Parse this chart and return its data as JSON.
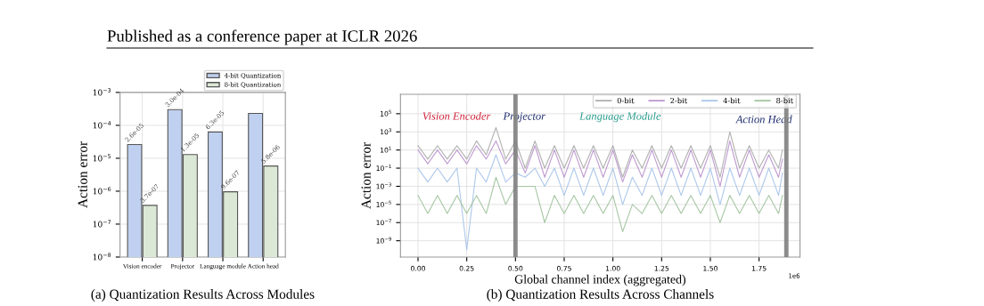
{
  "chart_data": [
    {
      "type": "bar",
      "ylabel": "Action error",
      "categories": [
        "Vision encoder",
        "Projector",
        "Language module",
        "Action head"
      ],
      "log": true,
      "ylim": [
        1e-08,
        0.001
      ],
      "yticks": [
        {
          "value": 1e-08,
          "label": "10$^{−8}$"
        },
        {
          "value": 1e-07,
          "label": "10$^{−7}$"
        },
        {
          "value": 1e-06,
          "label": "10$^{−6}$"
        },
        {
          "value": 1e-05,
          "label": "10$^{−5}$"
        },
        {
          "value": 0.0001,
          "label": "10$^{−4}$"
        },
        {
          "value": 0.001,
          "label": "10$^{−3}$"
        }
      ],
      "grid": true,
      "legend": "top right",
      "series": [
        {
          "name": "4-bit Quantization",
          "color": "#c0d0f0",
          "values": [
            2.6e-05,
            0.0003,
            6.3e-05,
            0.00023
          ],
          "value_labels": [
            "2.6e-05",
            "3.0e-04",
            "6.3e-05",
            null
          ]
        },
        {
          "name": "8-bit Quantization",
          "color": "#dce8d6",
          "values": [
            3.7e-07,
            1.3e-05,
            9.6e-07,
            5.8e-06
          ],
          "value_labels": [
            "3.7e-07",
            "1.3e-05",
            "9.6e-07",
            "5.8e-06"
          ]
        }
      ],
      "annotations": [
        "Published as a conference paper at ICLR 2026",
        "(a) Quantization Results Across Modules"
      ]
    },
    {
      "type": "line",
      "xlabel": "Global channel index (aggregated)",
      "ylabel": "Action error",
      "log": true,
      "xlim": [
        -0.09,
        1.96
      ],
      "ylim": [
        1.6e-11,
        14000000.0
      ],
      "xticks": [
        {
          "value": 0,
          "label": "0.00"
        },
        {
          "value": 0.25,
          "label": "0.25"
        },
        {
          "value": 0.5,
          "label": "0.50"
        },
        {
          "value": 0.75,
          "label": "0.75"
        },
        {
          "value": 1,
          "label": "1.00"
        },
        {
          "value": 1.25,
          "label": "1.25"
        },
        {
          "value": 1.5,
          "label": "1.50"
        },
        {
          "value": 1.75,
          "label": "1.75"
        }
      ],
      "yticks": [
        {
          "value": 1e-09,
          "label": "10$^{−9}$"
        },
        {
          "value": 1e-07,
          "label": "10$^{−7}$"
        },
        {
          "value": 1e-05,
          "label": "10$^{−5}$"
        },
        {
          "value": 0.001,
          "label": "10$^{−3}$"
        },
        {
          "value": 0.1,
          "label": "10$^{−1}$"
        },
        {
          "value": 10,
          "label": "10$^{1}$"
        },
        {
          "value": 1000,
          "label": "10$^{3}$"
        },
        {
          "value": 100000,
          "label": "10$^{5}$"
        }
      ],
      "grid": true,
      "legend": "top right",
      "x": [
        0.0,
        0.05,
        0.1,
        0.15,
        0.2,
        0.25,
        0.3,
        0.35,
        0.4,
        0.45,
        0.5,
        0.55,
        0.6,
        0.65,
        0.7,
        0.75,
        0.8,
        0.85,
        0.9,
        0.95,
        1.0,
        1.05,
        1.1,
        1.15,
        1.2,
        1.25,
        1.3,
        1.35,
        1.4,
        1.45,
        1.5,
        1.55,
        1.6,
        1.65,
        1.7,
        1.75,
        1.8,
        1.85,
        1.87
      ],
      "series": [
        {
          "name": "0-bit",
          "color": "#a8a8a8",
          "values": [
            30,
            1,
            30,
            1,
            30,
            1,
            100,
            3,
            3000,
            1,
            100,
            0.1,
            100,
            0.1,
            30,
            0.1,
            30,
            0.1,
            30,
            0.1,
            30,
            0.01,
            10,
            0.1,
            30,
            0.1,
            30,
            0.1,
            30,
            0.1,
            30,
            0.01,
            1000,
            0.1,
            30,
            0.1,
            10,
            0.1,
            10
          ]
        },
        {
          "name": "2-bit",
          "color": "#b890cc",
          "values": [
            10,
            0.3,
            10,
            0.3,
            10,
            0.3,
            30,
            1,
            100,
            0.3,
            10,
            0.03,
            30,
            0.01,
            10,
            0.01,
            10,
            0.01,
            10,
            0.01,
            10,
            0.003,
            3,
            0.01,
            10,
            0.01,
            10,
            0.01,
            10,
            0.01,
            10,
            0.001,
            100,
            0.01,
            10,
            0.01,
            3,
            0.01,
            1
          ]
        },
        {
          "name": "4-bit",
          "color": "#a4c2e8",
          "values": [
            0.1,
            0.003,
            0.1,
            0.003,
            0.1,
            1e-10,
            0.1,
            0.003,
            3,
            0.003,
            0.03,
            0.01,
            0.1,
            0.001,
            0.1,
            0.0001,
            0.1,
            0.0001,
            0.1,
            0.0001,
            0.1,
            1e-05,
            0.01,
            0.0001,
            0.1,
            0.0001,
            0.1,
            0.0001,
            0.1,
            0.0001,
            0.1,
            1e-05,
            0.1,
            0.0001,
            0.1,
            0.0001,
            0.1,
            0.0001,
            0.03
          ]
        },
        {
          "name": "8-bit",
          "color": "#9dc19a",
          "values": [
            0.0001,
            1e-06,
            0.0001,
            1e-06,
            0.0001,
            1e-06,
            0.0001,
            1e-06,
            0.01,
            1e-05,
            0.001,
            0.001,
            0.001,
            1e-07,
            0.0001,
            1e-06,
            0.0001,
            1e-06,
            0.0001,
            1e-06,
            0.0001,
            1e-08,
            1e-05,
            1e-06,
            0.0001,
            1e-06,
            0.0001,
            1e-06,
            0.0001,
            1e-06,
            0.0001,
            1e-07,
            0.0001,
            1e-06,
            0.0001,
            1e-06,
            0.0001,
            1e-06,
            0.0001
          ]
        }
      ],
      "ref_lines": [
        {
          "axis": "x",
          "value": 0.5,
          "color": "#808080"
        },
        {
          "axis": "x",
          "value": 1.89,
          "color": "#808080"
        }
      ],
      "annotations": [
        "(b) Quantization Results Across Channels",
        "1e6",
        "Vision Encoder",
        "Projector",
        "Language Module",
        "Action Head"
      ]
    }
  ]
}
